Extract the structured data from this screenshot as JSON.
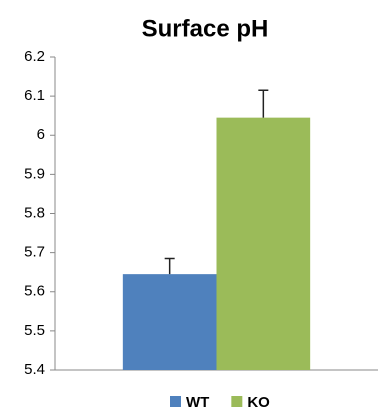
{
  "chart_data": {
    "type": "bar",
    "title": "Surface pH",
    "categories": [
      null
    ],
    "series": [
      {
        "name": "WT",
        "color": "#4f81bd",
        "values": [
          5.645
        ],
        "errors": [
          0.04
        ]
      },
      {
        "name": "KO",
        "color": "#9bbb59",
        "values": [
          6.045
        ],
        "errors": [
          0.07
        ]
      }
    ],
    "ylim": [
      5.4,
      6.2
    ],
    "yticks": [
      5.4,
      5.5,
      5.6,
      5.7,
      5.8,
      5.9,
      6,
      6.1,
      6.2
    ],
    "grid": false,
    "legend": "bottom"
  }
}
